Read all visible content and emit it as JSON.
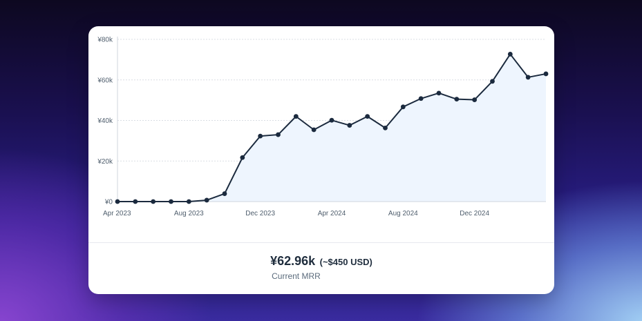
{
  "chart_data": {
    "type": "area",
    "y_ticks": [
      "¥0",
      "¥20k",
      "¥40k",
      "¥60k",
      "¥80k"
    ],
    "y_tick_values": [
      0,
      20000,
      40000,
      60000,
      80000
    ],
    "ylim": [
      0,
      80000
    ],
    "x_ticks": [
      "Apr 2023",
      "Aug 2023",
      "Dec 2023",
      "Apr 2024",
      "Aug 2024",
      "Dec 2024"
    ],
    "x_tick_months": [
      0,
      4,
      8,
      12,
      16,
      20
    ],
    "x_months": [
      "2023-04",
      "2023-05",
      "2023-06",
      "2023-07",
      "2023-08",
      "2023-09",
      "2023-10",
      "2023-11",
      "2023-12",
      "2024-01",
      "2024-02",
      "2024-03",
      "2024-04",
      "2024-05",
      "2024-06",
      "2024-07",
      "2024-08",
      "2024-09",
      "2024-10",
      "2024-11",
      "2024-12",
      "2025-01",
      "2025-02",
      "2025-03",
      "2025-04"
    ],
    "values": [
      0,
      0,
      0,
      0,
      0,
      700,
      3900,
      21700,
      32300,
      33000,
      42000,
      35400,
      40100,
      37600,
      42000,
      36300,
      46700,
      50800,
      53500,
      50500,
      50200,
      59300,
      72700,
      61300,
      63000
    ],
    "grid": true,
    "line_color": "#1b2a3e",
    "fill_color": "#eef5fe",
    "grid_color": "#d9dde3"
  },
  "summary": {
    "value": "¥62.96k",
    "usd": "(~$450 USD)",
    "label": "Current MRR"
  }
}
